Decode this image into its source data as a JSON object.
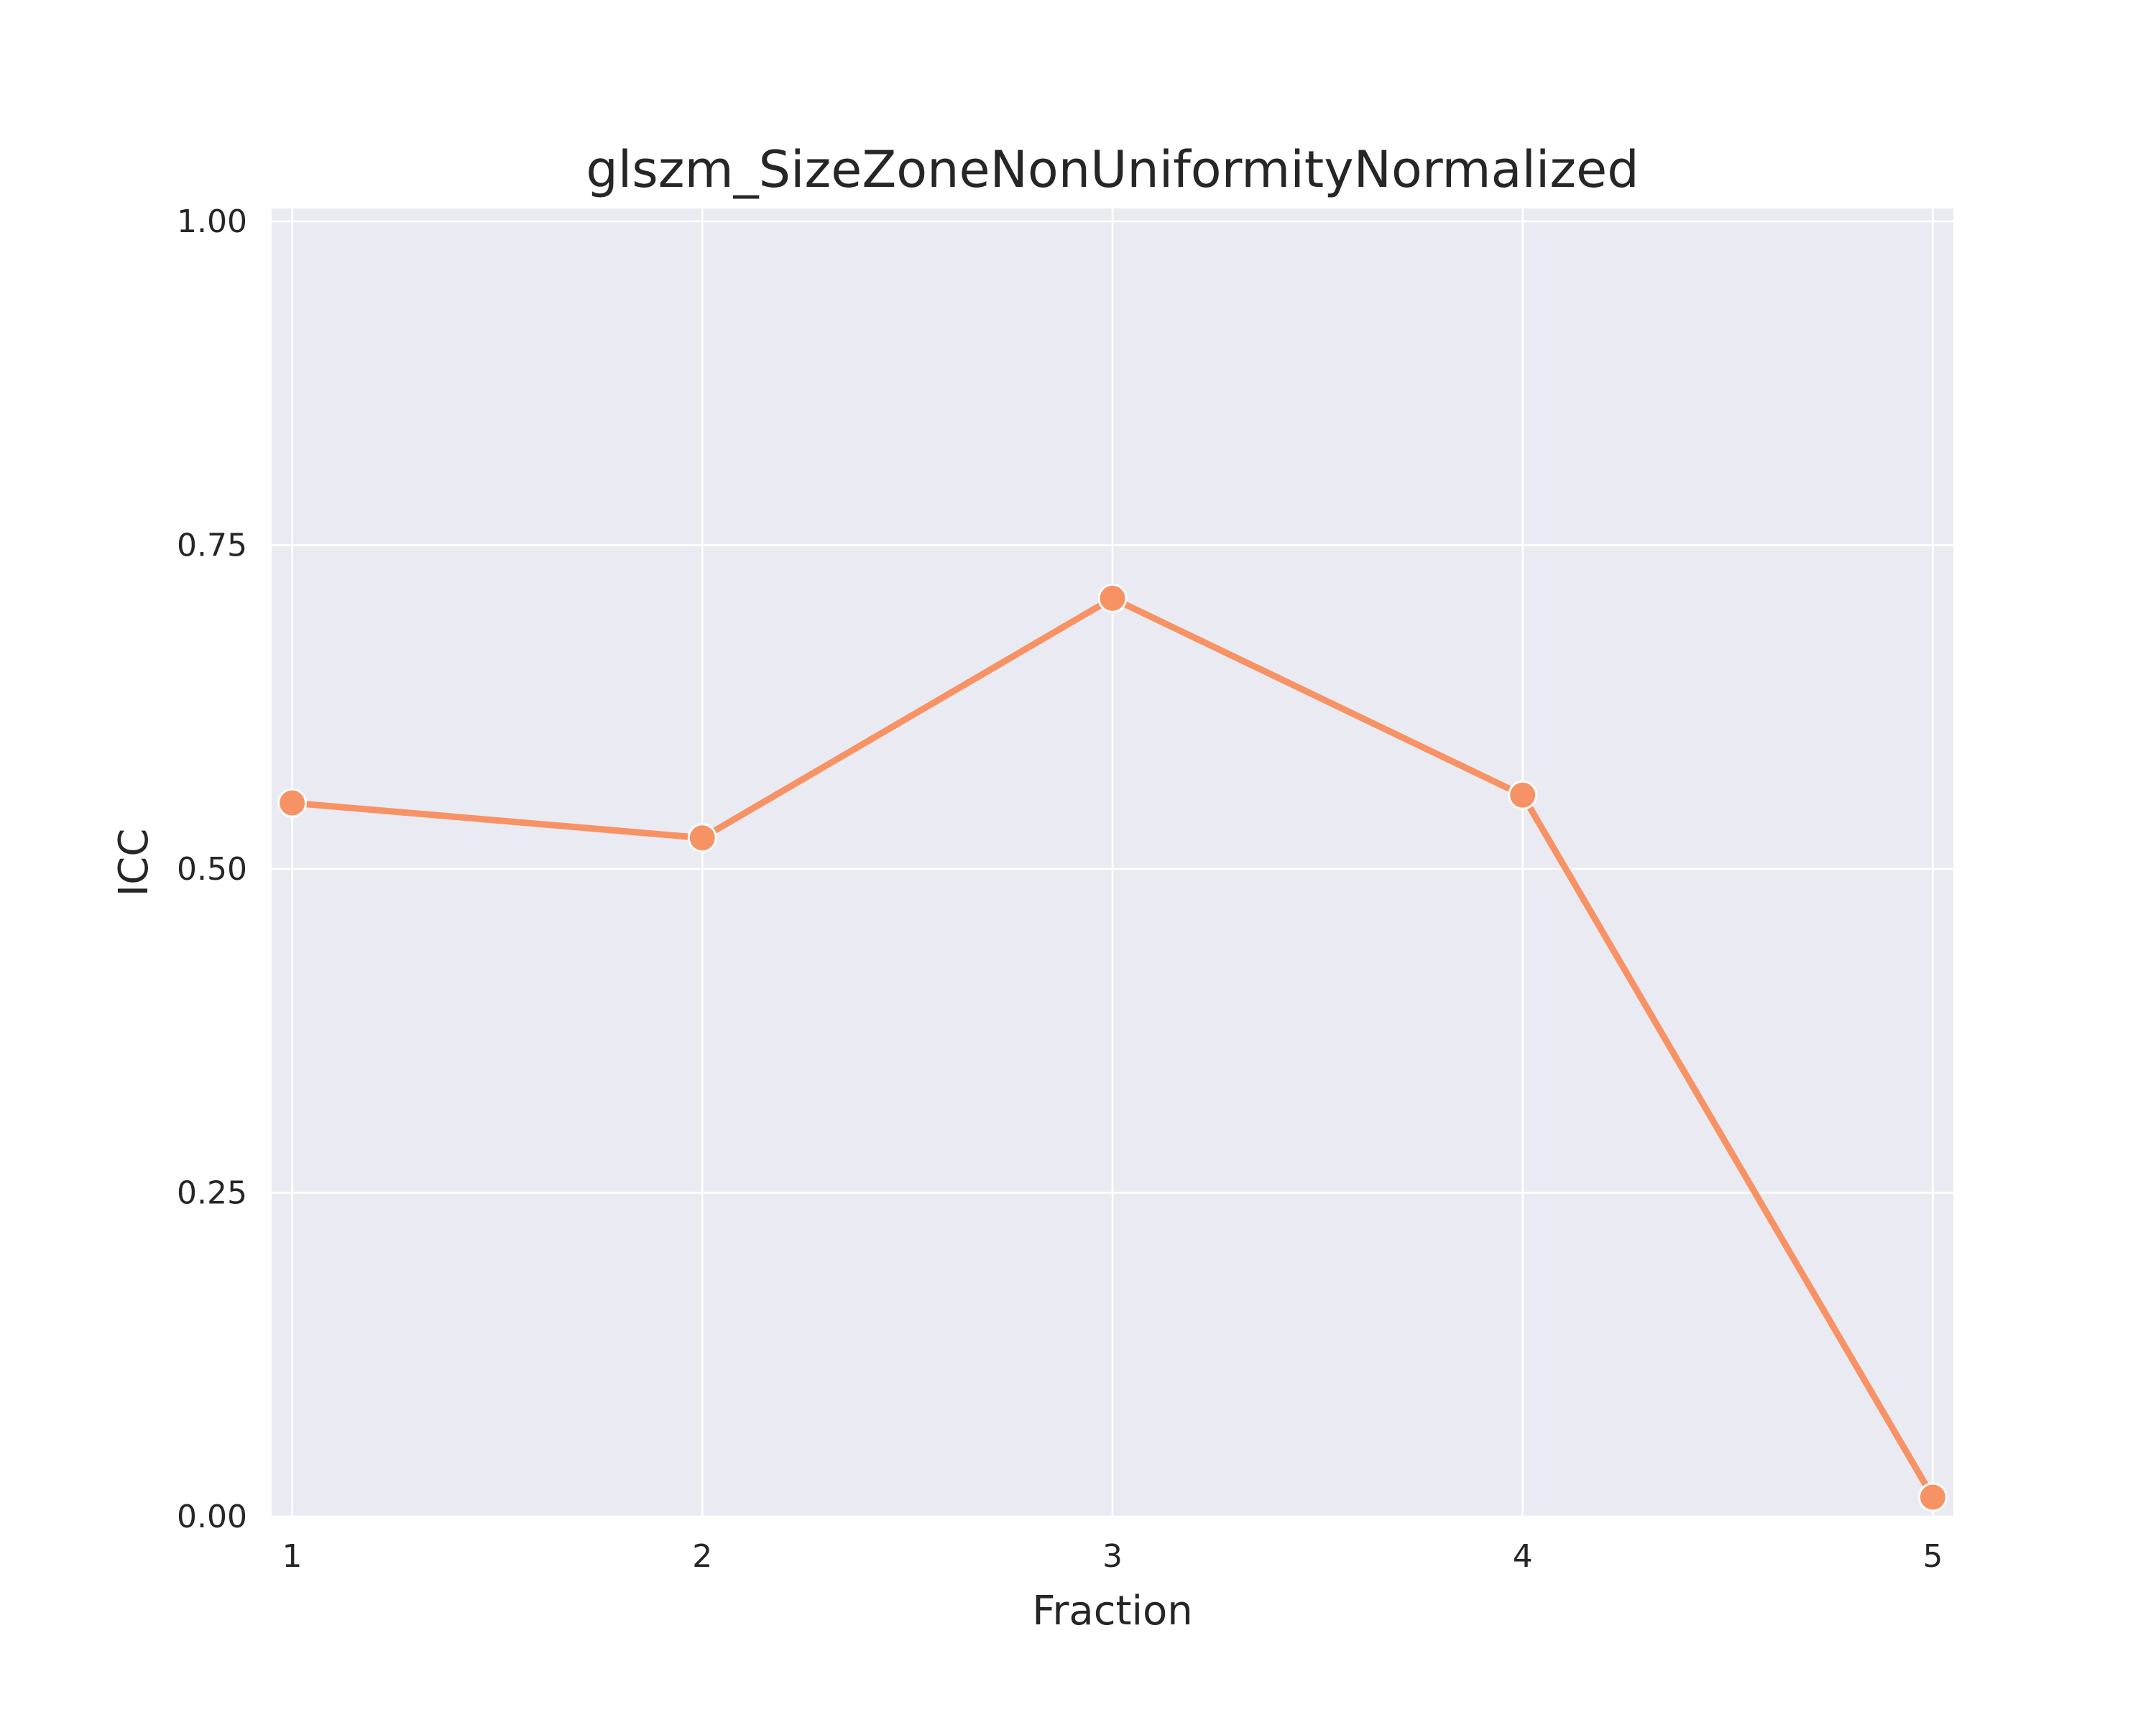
{
  "chart_data": {
    "type": "line",
    "title": "glszm_SizeZoneNonUniformityNormalized",
    "xlabel": "Fraction",
    "ylabel": "ICC",
    "x": [
      1,
      2,
      3,
      4,
      5
    ],
    "x_tick_labels": [
      "1",
      "2",
      "3",
      "4",
      "5"
    ],
    "y_ticks": [
      0.0,
      0.25,
      0.5,
      0.75,
      1.0
    ],
    "y_tick_labels": [
      "0.00",
      "0.25",
      "0.50",
      "0.75",
      "1.00"
    ],
    "xlim": [
      0.95,
      5.05
    ],
    "ylim": [
      0.0,
      1.01
    ],
    "grid": true,
    "background_color": "#EAEAF2",
    "grid_color": "#FFFFFF",
    "series": [
      {
        "values": [
          0.551,
          0.524,
          0.709,
          0.557,
          0.015
        ],
        "color": "#F79265",
        "marker": "circle"
      }
    ]
  }
}
